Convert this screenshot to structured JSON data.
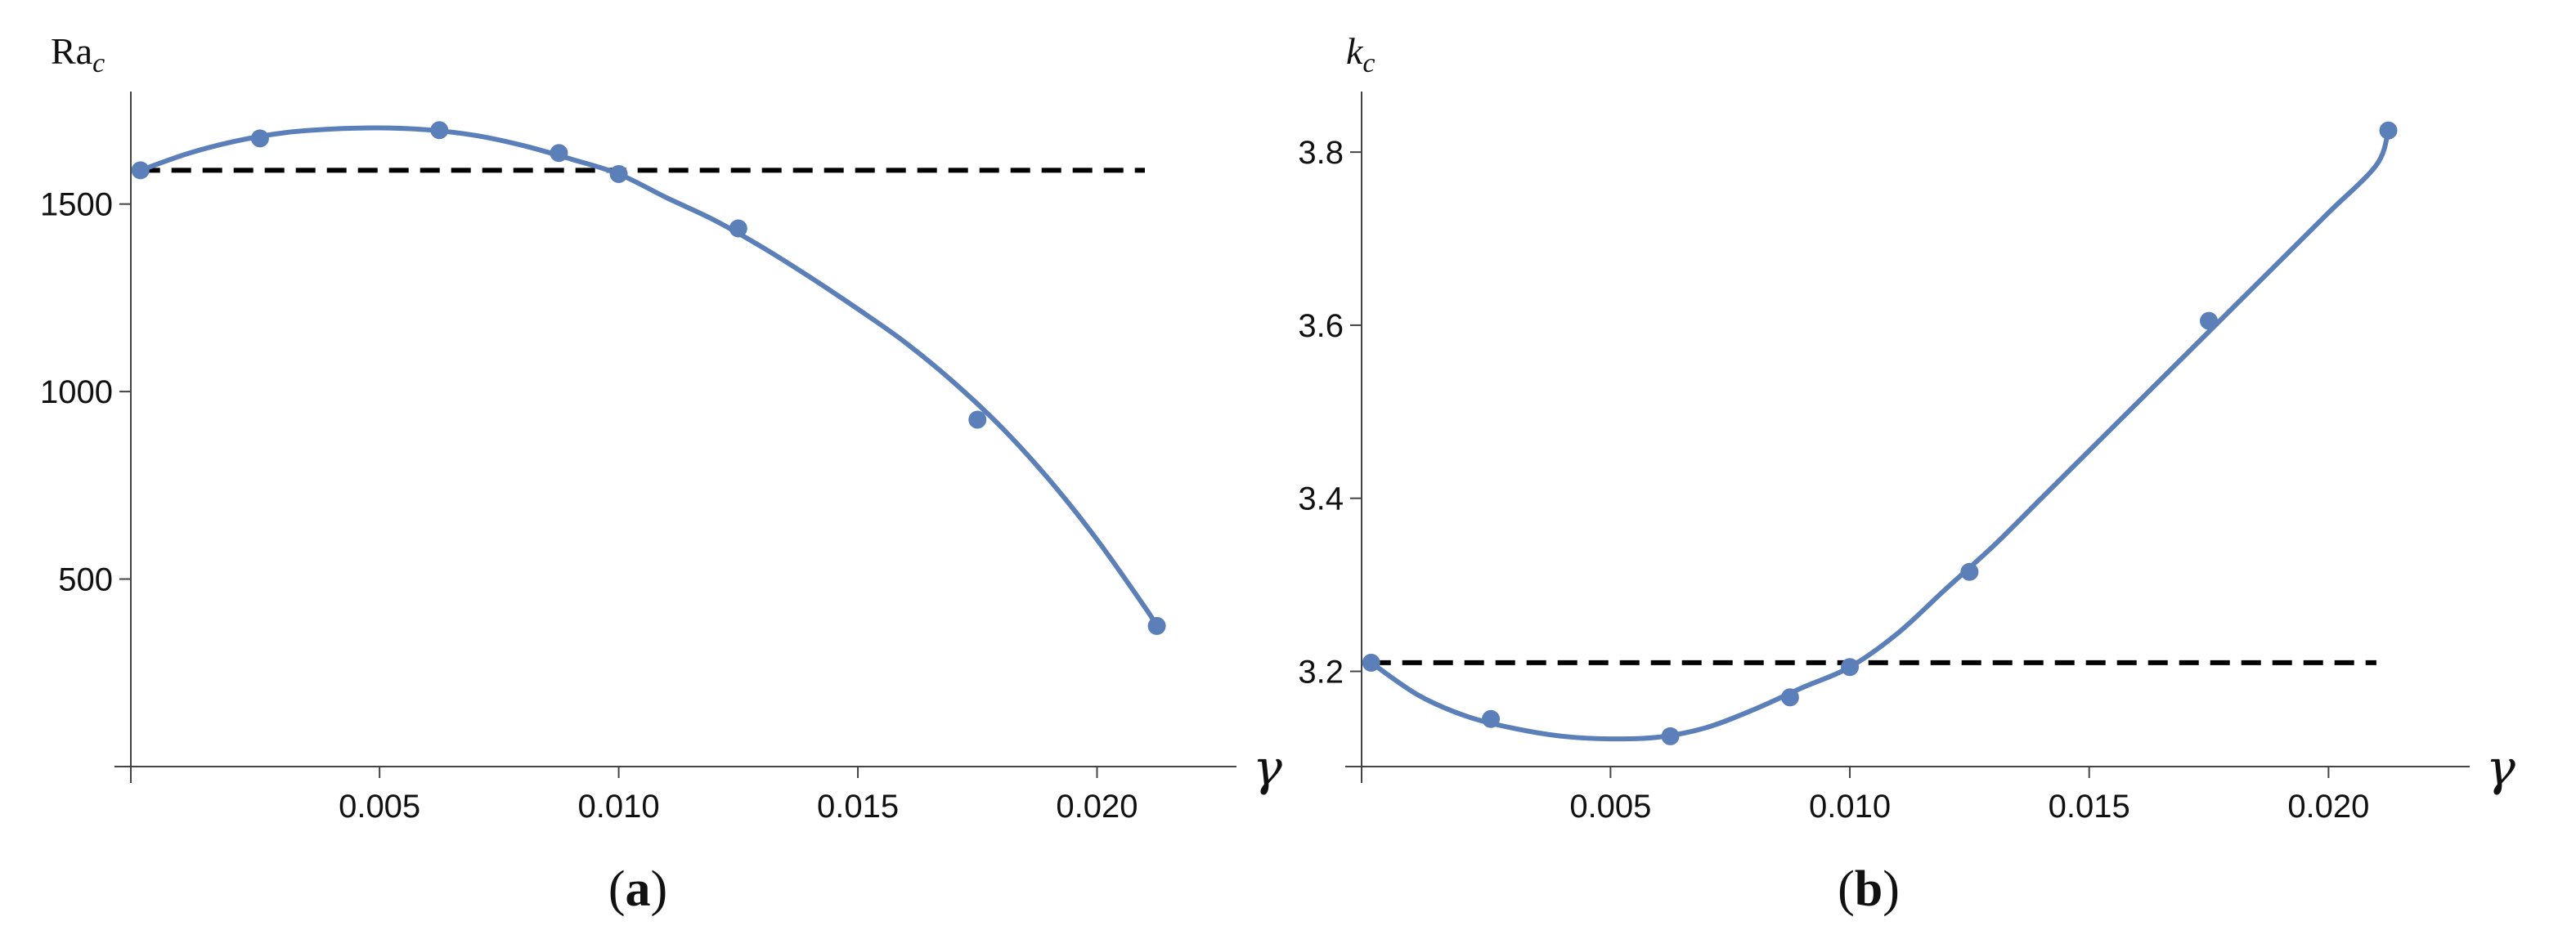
{
  "colors": {
    "series": "#5b7fb9",
    "reference": "#000000",
    "axis": "#444444"
  },
  "chart_data": [
    {
      "type": "line",
      "panel_label": {
        "open": "(",
        "letter": "a",
        "close": ")"
      },
      "ylabel": {
        "main": "Ra",
        "sub": "c"
      },
      "xlabel": "γ",
      "xlim": [
        -0.0002,
        0.0223
      ],
      "ylim": [
        0,
        1800
      ],
      "x_ticks": [
        0.005,
        0.01,
        0.015,
        0.02
      ],
      "x_tick_labels": [
        "0.005",
        "0.010",
        "0.015",
        "0.020"
      ],
      "y_ticks": [
        500,
        1000,
        1500
      ],
      "y_tick_labels": [
        "500",
        "1000",
        "1500"
      ],
      "grid": false,
      "series": [
        {
          "curve_x": [
            0,
            0.001,
            0.002,
            0.003,
            0.004,
            0.005,
            0.006,
            0.007,
            0.008,
            0.009,
            0.01,
            0.011,
            0.012,
            0.013,
            0.014,
            0.015,
            0.016,
            0.017,
            0.018,
            0.019,
            0.02,
            0.021,
            0.02125
          ],
          "curve_y": [
            1590,
            1635,
            1668,
            1690,
            1700,
            1703,
            1698,
            1683,
            1656,
            1620,
            1580,
            1517,
            1457,
            1385,
            1305,
            1220,
            1130,
            1025,
            905,
            765,
            605,
            425,
            375
          ],
          "points_x": [
            0,
            0.0025,
            0.00625,
            0.00875,
            0.01,
            0.0125,
            0.0175,
            0.02125
          ],
          "points_y": [
            1590,
            1675,
            1697,
            1636,
            1580,
            1435,
            925,
            375
          ]
        }
      ],
      "reference_line": {
        "y": 1590,
        "x_range": [
          0,
          0.021
        ]
      }
    },
    {
      "type": "line",
      "panel_label": {
        "open": "(",
        "letter": "b",
        "close": ")"
      },
      "ylabel": {
        "main": "k",
        "sub": "c"
      },
      "xlabel": "γ",
      "xlim": [
        -0.0002,
        0.0223
      ],
      "ylim": [
        3.09,
        3.87
      ],
      "x_ticks": [
        0.005,
        0.01,
        0.015,
        0.02
      ],
      "x_tick_labels": [
        "0.005",
        "0.010",
        "0.015",
        "0.020"
      ],
      "y_ticks": [
        3.2,
        3.4,
        3.6,
        3.8
      ],
      "y_tick_labels": [
        "3.2",
        "3.4",
        "3.6",
        "3.8"
      ],
      "grid": false,
      "series": [
        {
          "curve_x": [
            0,
            0.001,
            0.002,
            0.003,
            0.004,
            0.005,
            0.006,
            0.007,
            0.008,
            0.009,
            0.01,
            0.011,
            0.012,
            0.013,
            0.014,
            0.015,
            0.016,
            0.017,
            0.018,
            0.019,
            0.02,
            0.021,
            0.02125
          ],
          "curve_y": [
            3.21,
            3.172,
            3.148,
            3.134,
            3.125,
            3.122,
            3.124,
            3.135,
            3.156,
            3.181,
            3.205,
            3.244,
            3.295,
            3.345,
            3.4,
            3.455,
            3.51,
            3.565,
            3.62,
            3.675,
            3.73,
            3.785,
            3.825
          ],
          "points_x": [
            0,
            0.0025,
            0.00625,
            0.00875,
            0.01,
            0.0125,
            0.0175,
            0.02125
          ],
          "points_y": [
            3.21,
            3.145,
            3.125,
            3.17,
            3.205,
            3.315,
            3.605,
            3.825
          ]
        }
      ],
      "reference_line": {
        "y": 3.21,
        "x_range": [
          0,
          0.021
        ]
      }
    }
  ]
}
